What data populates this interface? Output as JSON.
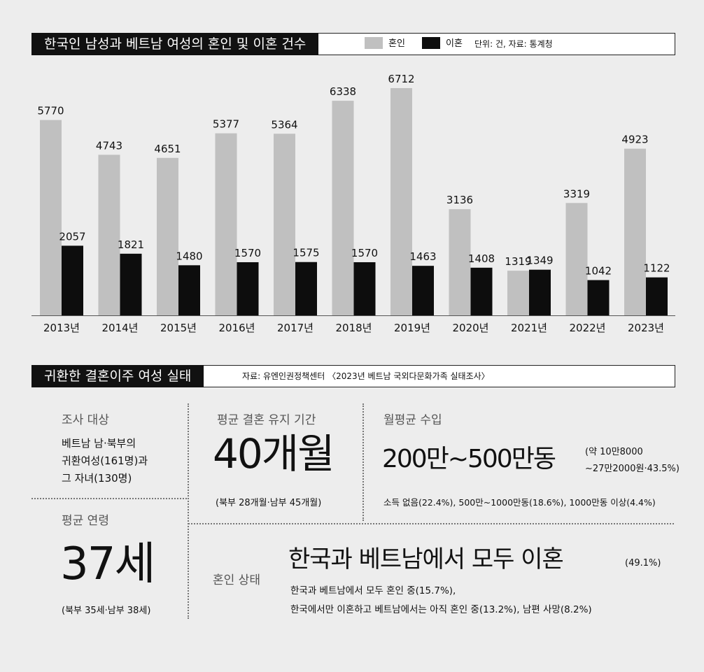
{
  "header1": {
    "title": "한국인 남성과 베트남 여성의 혼인 및 이혼 건수",
    "legend_marriage": "혼인",
    "legend_divorce": "이혼",
    "unit_source": "단위: 건, 자료: 통계청"
  },
  "colors": {
    "marriage": "#c0c0c0",
    "divorce": "#0d0d0d",
    "background": "#ededed"
  },
  "chart_data": {
    "type": "bar",
    "categories": [
      "2013년",
      "2014년",
      "2015년",
      "2016년",
      "2017년",
      "2018년",
      "2019년",
      "2020년",
      "2021년",
      "2022년",
      "2023년"
    ],
    "series": [
      {
        "name": "혼인",
        "values": [
          5770,
          4743,
          4651,
          5377,
          5364,
          6338,
          6712,
          3136,
          1319,
          3319,
          4923
        ]
      },
      {
        "name": "이혼",
        "values": [
          2057,
          1821,
          1480,
          1570,
          1575,
          1570,
          1463,
          1408,
          1349,
          1042,
          1122
        ]
      }
    ],
    "title": "한국인 남성과 베트남 여성의 혼인 및 이혼 건수",
    "ylim": [
      0,
      6712
    ],
    "grid": false,
    "legend_position": "top-right"
  },
  "header2": {
    "title": "귀환한 결혼이주 여성 실태",
    "source": "자료: 유엔인권정책센터 〈2023년 베트남 국외다문화가족 실태조사〉"
  },
  "survey": {
    "target_title": "조사 대상",
    "target_lines": [
      "베트남 남·북부의",
      "귀환여성(161명)과",
      "그 자녀(130명)"
    ],
    "duration_title": "평균 결혼 유지 기간",
    "duration_value": "40개월",
    "duration_note": "(북부 28개월·남부 45개월)",
    "income_title": "월평균 수입",
    "income_value": "200만~500만동",
    "income_note_lines": [
      "(약 10만8000",
      "~27만2000원·43.5%)"
    ],
    "income_detail": "소득 없음(22.4%), 500만~1000만동(18.6%), 1000만동 이상(4.4%)",
    "age_title": "평균 연령",
    "age_value": "37세",
    "age_note": "(북부 35세·남부 38세)",
    "marital_title": "혼인 상태",
    "marital_value": "한국과 베트남에서 모두 이혼",
    "marital_pct": "(49.1%)",
    "marital_detail_lines": [
      "한국과 베트남에서 모두 혼인 중(15.7%),",
      "한국에서만 이혼하고 베트남에서는 아직 혼인 중(13.2%), 남편 사망(8.2%)"
    ]
  }
}
